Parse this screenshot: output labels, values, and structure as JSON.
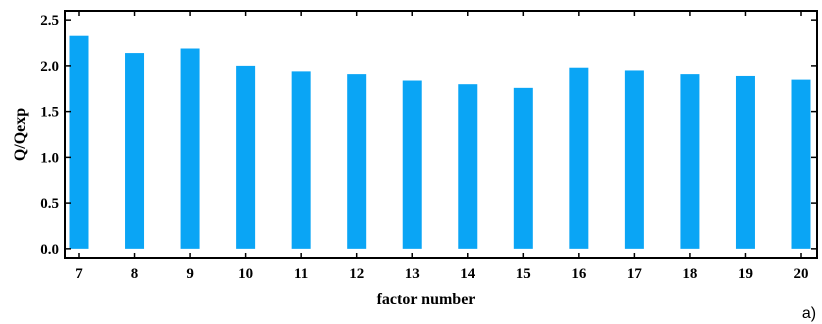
{
  "chart_data": {
    "type": "bar",
    "xlabel": "factor number",
    "ylabel": "Q/Qexp",
    "panel_label": "a)",
    "categories": [
      "7",
      "8",
      "9",
      "10",
      "11",
      "12",
      "13",
      "14",
      "15",
      "16",
      "17",
      "18",
      "19",
      "20"
    ],
    "series": [
      {
        "values": [
          2.33,
          2.14,
          2.19,
          2.0,
          1.94,
          1.91,
          1.84,
          1.8,
          1.76,
          1.98,
          1.95,
          1.91,
          1.89,
          1.85
        ]
      }
    ],
    "ylim": [
      -0.1,
      2.6
    ],
    "yticks": [
      "0.0",
      "0.5",
      "1.0",
      "1.5",
      "2.0",
      "2.5"
    ],
    "bar_color": "#0aa5f5",
    "grid": false,
    "legend": "none"
  }
}
